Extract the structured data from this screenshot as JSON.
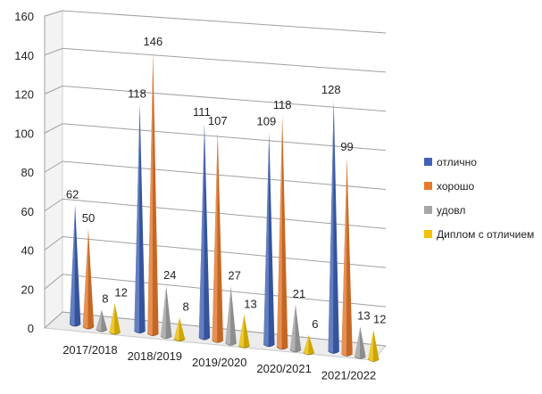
{
  "chart_data": {
    "type": "bar",
    "style": "3d-cone",
    "title": "",
    "xlabel": "",
    "ylabel": "",
    "ylim": [
      0,
      160
    ],
    "yticks": [
      0,
      20,
      40,
      60,
      80,
      100,
      120,
      140,
      160
    ],
    "grid": true,
    "legend_position": "right",
    "categories": [
      "2017/2018",
      "2018/2019",
      "2019/2020",
      "2020/2021",
      "2021/2022"
    ],
    "series": [
      {
        "name": "отлично",
        "color": "#3f63b8",
        "values": [
          62,
          118,
          111,
          109,
          128
        ]
      },
      {
        "name": "хорошо",
        "color": "#e8792a",
        "values": [
          50,
          146,
          107,
          118,
          99
        ]
      },
      {
        "name": "удовл",
        "color": "#a6a6a6",
        "values": [
          8,
          24,
          27,
          21,
          13
        ]
      },
      {
        "name": "Диплом с отличием",
        "color": "#f2c200",
        "values": [
          12,
          8,
          13,
          6,
          12
        ]
      }
    ]
  }
}
